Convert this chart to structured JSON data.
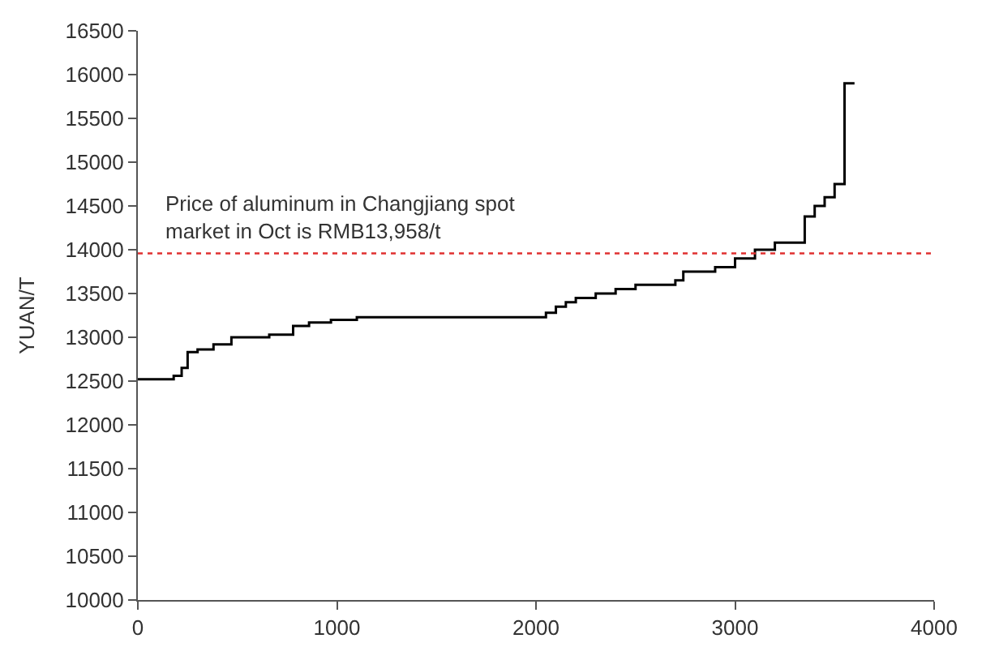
{
  "chart_data": {
    "type": "step",
    "ylabel": "YUAN/T",
    "x": [
      0,
      180,
      220,
      250,
      300,
      380,
      470,
      660,
      780,
      860,
      970,
      1100,
      2050,
      2100,
      2150,
      2200,
      2300,
      2400,
      2500,
      2700,
      2740,
      2900,
      3000,
      3100,
      3200,
      3350,
      3400,
      3450,
      3500,
      3550,
      3600
    ],
    "series": [
      {
        "color": "#000000",
        "values": [
          12520,
          12560,
          12650,
          12830,
          12860,
          12920,
          13000,
          13030,
          13130,
          13170,
          13200,
          13230,
          13280,
          13350,
          13400,
          13450,
          13500,
          13550,
          13600,
          13650,
          13750,
          13800,
          13900,
          14000,
          14080,
          14380,
          14500,
          14600,
          14750,
          15900,
          15900
        ]
      }
    ],
    "xlim": [
      0,
      4000
    ],
    "xticks": [
      0,
      1000,
      2000,
      3000,
      4000
    ],
    "ylim": [
      10000,
      16500
    ],
    "yticks": [
      10000,
      10500,
      11000,
      11500,
      12000,
      12500,
      13000,
      13500,
      14000,
      14500,
      15000,
      15500,
      16000,
      16500
    ],
    "ref_lines": [
      {
        "axis": "y",
        "value": 13958,
        "label": "Price of aluminum in Changjiang spot\nmarket in Oct is RMB13,958/t",
        "color": "#e03030",
        "line_style": "dotted"
      }
    ],
    "legend": false
  }
}
